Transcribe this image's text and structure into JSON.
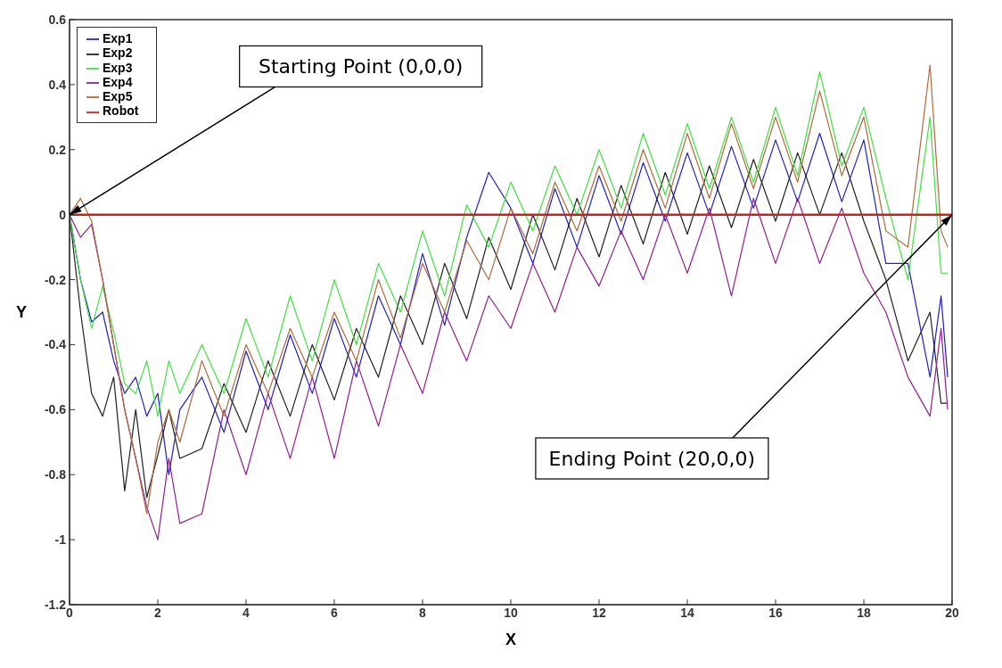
{
  "chart_data": {
    "type": "line",
    "xlabel": "X",
    "ylabel": "Y",
    "xlim": [
      0,
      20
    ],
    "ylim": [
      -1.2,
      0.6
    ],
    "xticks": [
      0,
      2,
      4,
      6,
      8,
      10,
      12,
      14,
      16,
      18,
      20
    ],
    "yticks": [
      -1.2,
      -1,
      -0.8,
      -0.6,
      -0.4,
      -0.2,
      0,
      0.2,
      0.4,
      0.6
    ],
    "grid": false,
    "legend": "top left",
    "marker": "none",
    "line_style": "solid",
    "x": [
      0,
      0.25,
      0.5,
      0.75,
      1,
      1.25,
      1.5,
      1.75,
      2,
      2.25,
      2.5,
      3,
      3.5,
      4,
      4.5,
      5,
      5.5,
      6,
      6.5,
      7,
      7.5,
      8,
      8.5,
      9,
      9.5,
      10,
      10.5,
      11,
      11.5,
      12,
      12.5,
      13,
      13.5,
      14,
      14.5,
      15,
      15.5,
      16,
      16.5,
      17,
      17.5,
      18,
      18.5,
      19,
      19.5,
      19.75,
      19.9
    ],
    "series": [
      {
        "name": "Exp1",
        "color": "#2020c0",
        "values": [
          0,
          -0.2,
          -0.33,
          -0.3,
          -0.45,
          -0.55,
          -0.5,
          -0.62,
          -0.55,
          -0.8,
          -0.6,
          -0.5,
          -0.67,
          -0.42,
          -0.6,
          -0.37,
          -0.55,
          -0.32,
          -0.5,
          -0.25,
          -0.4,
          -0.12,
          -0.34,
          -0.07,
          0.13,
          0.02,
          -0.15,
          0.08,
          -0.1,
          0.12,
          -0.06,
          0.16,
          -0.02,
          0.19,
          0,
          0.21,
          0.02,
          0.23,
          0.04,
          0.25,
          0.04,
          0.23,
          -0.15,
          -0.15,
          -0.5,
          -0.25,
          -0.5
        ]
      },
      {
        "name": "Exp2",
        "color": "#202020",
        "values": [
          0,
          -0.3,
          -0.55,
          -0.62,
          -0.5,
          -0.85,
          -0.6,
          -0.87,
          -0.74,
          -0.6,
          -0.75,
          -0.72,
          -0.52,
          -0.67,
          -0.45,
          -0.62,
          -0.4,
          -0.57,
          -0.35,
          -0.5,
          -0.25,
          -0.4,
          -0.15,
          -0.32,
          -0.07,
          -0.23,
          0,
          -0.17,
          0.05,
          -0.13,
          0.09,
          -0.09,
          0.13,
          -0.06,
          0.15,
          -0.04,
          0.17,
          -0.02,
          0.19,
          0,
          0.19,
          -0.02,
          -0.2,
          -0.45,
          -0.3,
          -0.58,
          -0.58
        ]
      },
      {
        "name": "Exp3",
        "color": "#40e040",
        "values": [
          0,
          -0.2,
          -0.35,
          -0.22,
          -0.36,
          -0.52,
          -0.55,
          -0.45,
          -0.62,
          -0.45,
          -0.55,
          -0.4,
          -0.55,
          -0.32,
          -0.5,
          -0.25,
          -0.45,
          -0.2,
          -0.4,
          -0.15,
          -0.3,
          -0.05,
          -0.25,
          0.03,
          -0.1,
          0.1,
          -0.05,
          0.15,
          0,
          0.2,
          0.02,
          0.25,
          0.06,
          0.28,
          0.08,
          0.3,
          0.1,
          0.33,
          0.12,
          0.44,
          0.15,
          0.33,
          0.05,
          -0.2,
          0.3,
          -0.18,
          -0.18
        ]
      },
      {
        "name": "Exp4",
        "color": "#902090",
        "values": [
          0,
          -0.07,
          -0.03,
          -0.2,
          -0.4,
          -0.6,
          -0.75,
          -0.9,
          -1,
          -0.75,
          -0.95,
          -0.92,
          -0.6,
          -0.8,
          -0.55,
          -0.75,
          -0.5,
          -0.75,
          -0.45,
          -0.65,
          -0.4,
          -0.55,
          -0.3,
          -0.45,
          -0.25,
          -0.35,
          -0.15,
          -0.3,
          -0.1,
          -0.22,
          -0.05,
          -0.2,
          0,
          -0.18,
          0.02,
          -0.25,
          0.05,
          -0.15,
          0.05,
          -0.15,
          0.02,
          -0.18,
          -0.3,
          -0.5,
          -0.62,
          -0.35,
          -0.6
        ]
      },
      {
        "name": "Exp5",
        "color": "#b06a3a",
        "values": [
          0,
          0.05,
          -0.02,
          -0.2,
          -0.4,
          -0.6,
          -0.75,
          -0.92,
          -0.7,
          -0.6,
          -0.7,
          -0.45,
          -0.62,
          -0.4,
          -0.55,
          -0.35,
          -0.5,
          -0.3,
          -0.45,
          -0.2,
          -0.38,
          -0.15,
          -0.3,
          -0.08,
          -0.2,
          0.02,
          -0.12,
          0.1,
          -0.05,
          0.15,
          -0.02,
          0.2,
          0.02,
          0.25,
          0.05,
          0.28,
          0.08,
          0.3,
          0.1,
          0.38,
          0.12,
          0.3,
          -0.05,
          -0.1,
          0.46,
          -0.05,
          -0.1
        ]
      },
      {
        "name": "Robot",
        "color": "#d02020",
        "x": [
          0,
          20
        ],
        "values": [
          0,
          0
        ]
      }
    ],
    "annotations": [
      {
        "text": "Starting Point (0,0,0)",
        "x": 0,
        "y": 0
      },
      {
        "text": "Ending Point (20,0,0)",
        "x": 20,
        "y": 0
      }
    ]
  }
}
